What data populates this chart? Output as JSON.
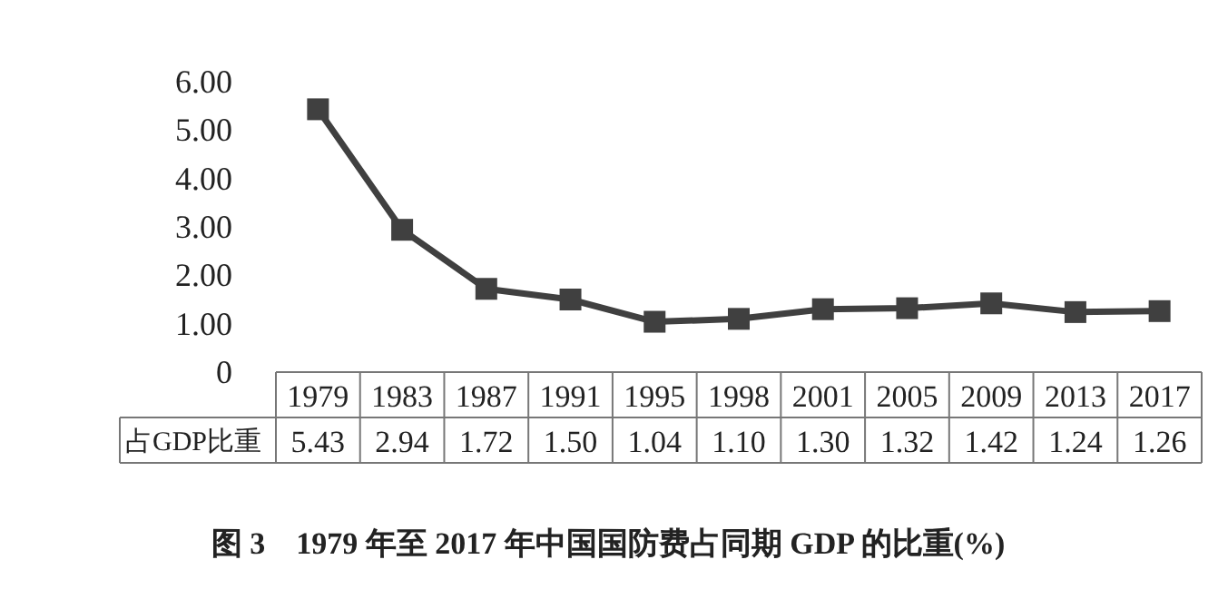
{
  "chart_data": {
    "type": "line",
    "title": "图 3　1979 年至 2017 年中国国防费占同期 GDP 的比重(%)",
    "categories": [
      "1979",
      "1983",
      "1987",
      "1991",
      "1995",
      "1998",
      "2001",
      "2005",
      "2009",
      "2013",
      "2017"
    ],
    "series": [
      {
        "name": "占GDP比重",
        "color": "#404040",
        "values": [
          5.43,
          2.94,
          1.72,
          1.5,
          1.04,
          1.1,
          1.3,
          1.32,
          1.42,
          1.24,
          1.26
        ],
        "value_labels": [
          "5.43",
          "2.94",
          "1.72",
          "1.50",
          "1.04",
          "1.10",
          "1.30",
          "1.32",
          "1.42",
          "1.24",
          "1.26"
        ]
      }
    ],
    "ylim": [
      0,
      6
    ],
    "yticks": [
      0,
      {
        "value": 1,
        "label": "1.00"
      },
      {
        "value": 2,
        "label": "2.00"
      },
      {
        "value": 3,
        "label": "3.00"
      },
      {
        "value": 4,
        "label": "4.00"
      },
      {
        "value": 5,
        "label": "5.00"
      },
      {
        "value": 6,
        "label": "6.00"
      }
    ],
    "marker": "square",
    "line_style": "solid",
    "grid": false
  }
}
